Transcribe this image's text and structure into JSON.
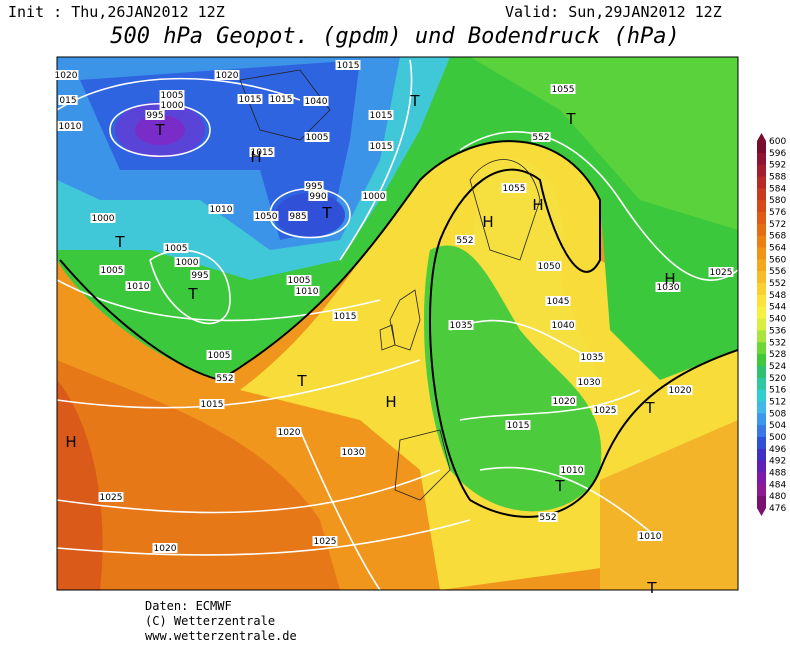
{
  "header": {
    "init": "Init : Thu,26JAN2012 12Z",
    "valid": "Valid: Sun,29JAN2012 12Z",
    "title": "500 hPa Geopot. (gpdm) und Bodendruck (hPa)"
  },
  "map": {
    "isobar_labels": [
      "1020",
      "1020",
      "1015",
      "1015",
      "1015",
      "1040",
      "1005",
      "1000",
      "015",
      "995",
      "1010",
      "1015",
      "1015",
      "1005",
      "1015",
      "995",
      "990",
      "985",
      "1000",
      "1010",
      "1050",
      "1000",
      "1005",
      "1000",
      "995",
      "1005",
      "1010",
      "1005",
      "1010",
      "1015",
      "1005",
      "552",
      "1015",
      "1020",
      "1030",
      "1025",
      "1020",
      "1025",
      "1055",
      "552",
      "1055",
      "552",
      "1050",
      "1045",
      "1035",
      "1040",
      "1035",
      "1030",
      "1020",
      "1025",
      "1015",
      "1010",
      "552",
      "1010",
      "1025",
      "1030",
      "1020"
    ],
    "centers": [
      "T",
      "H",
      "T",
      "T",
      "T",
      "T",
      "T",
      "H",
      "H",
      "T",
      "H",
      "H",
      "H",
      "T",
      "T",
      "T"
    ]
  },
  "legend": {
    "levels": [
      600,
      596,
      592,
      588,
      584,
      580,
      576,
      572,
      568,
      564,
      560,
      556,
      552,
      548,
      544,
      540,
      536,
      532,
      528,
      524,
      520,
      516,
      512,
      508,
      504,
      500,
      496,
      492,
      488,
      484,
      480,
      476
    ],
    "colors": [
      "#7a0c2e",
      "#8e1432",
      "#a51c2c",
      "#b82a26",
      "#c83a1e",
      "#d64a18",
      "#e05c14",
      "#e66e12",
      "#ec8014",
      "#f09418",
      "#f4a820",
      "#f8bc28",
      "#fad030",
      "#fce23a",
      "#f8f040",
      "#d8ee40",
      "#a8e43c",
      "#6cd838",
      "#40c83c",
      "#30c070",
      "#30c8a0",
      "#30d0d0",
      "#40b8e8",
      "#3c98ec",
      "#3a78e8",
      "#3050d8",
      "#4030c8",
      "#6020b8",
      "#8018a8",
      "#901890",
      "#7a1070"
    ]
  },
  "footer": [
    "Daten: ECMWF",
    "(C) Wetterzentrale",
    "www.wetterzentrale.de"
  ]
}
